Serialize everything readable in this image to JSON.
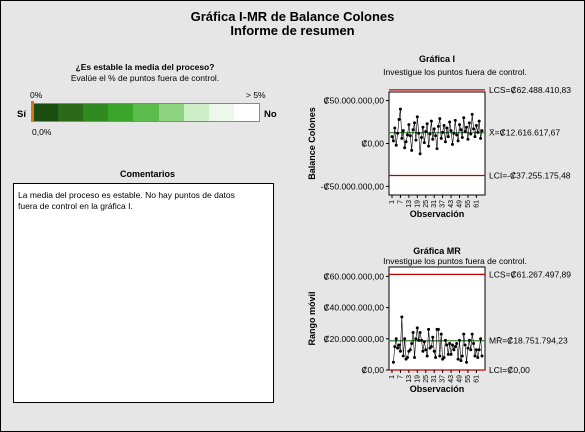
{
  "report": {
    "title": "Gráfica I-MR de Balance Colones",
    "subtitle": "Informe de resumen"
  },
  "gauge": {
    "question": "¿Es estable la media del proceso?",
    "instruction": "Evalúe el % de puntos fuera de control.",
    "min_label": "0%",
    "max_label": "> 5%",
    "yes_label": "Sí",
    "no_label": "No",
    "value_label": "0,0%",
    "value_percent": 0.0,
    "colors": [
      "#1c4d10",
      "#2a6a18",
      "#2f8a1f",
      "#3aa52a",
      "#5cbc4c",
      "#8ed480",
      "#cdeec6",
      "#ecf8e9",
      "#ffffff"
    ]
  },
  "comments": {
    "title": "Comentarios",
    "lines": [
      "La media del proceso es estable. No hay puntos de datos",
      "fuera de control en la gráfica I."
    ]
  },
  "colors": {
    "control_limit": "#c00000",
    "center_line": "#2e7d32",
    "points": "#000000"
  },
  "chart_data": [
    {
      "type": "line",
      "title": "Gráfica I",
      "subtitle": "Investigue los puntos fuera de control.",
      "xlabel": "Observación",
      "ylabel": "Balance Colones",
      "ylim": [
        -60000000,
        60000000
      ],
      "ytick_labels": [
        "₡50.000.000,00",
        "₡0,00",
        "-₡50.000.000,00"
      ],
      "ytick_values": [
        50000000,
        0,
        -50000000
      ],
      "xtick_labels": [
        "1",
        "7",
        "13",
        "19",
        "25",
        "31",
        "37",
        "43",
        "49",
        "55",
        "61"
      ],
      "limits": {
        "ucl": 62488410.83,
        "ucl_label": "LCS=₡62.488.410,83",
        "center": 12616617.67,
        "center_label": "X̄=₡12.616.617,67",
        "lcl": -37255175.48,
        "lcl_label": "LCI=-₡37.255.175,48"
      },
      "x": [
        1,
        2,
        3,
        4,
        5,
        6,
        7,
        8,
        9,
        10,
        11,
        12,
        13,
        14,
        15,
        16,
        17,
        18,
        19,
        20,
        21,
        22,
        23,
        24,
        25,
        26,
        27,
        28,
        29,
        30,
        31,
        32,
        33,
        34,
        35,
        36,
        37,
        38,
        39,
        40,
        41,
        42,
        43,
        44,
        45,
        46,
        47,
        48,
        49,
        50,
        51,
        52,
        53,
        54,
        55,
        56,
        57,
        58,
        59,
        60,
        61,
        62,
        63,
        64,
        65
      ],
      "values": [
        8000000,
        3000000,
        18000000,
        -2000000,
        12000000,
        28000000,
        40000000,
        6000000,
        15000000,
        -5000000,
        2000000,
        10000000,
        22000000,
        9000000,
        -8000000,
        16000000,
        24000000,
        4000000,
        31000000,
        12000000,
        -12000000,
        7000000,
        19000000,
        1000000,
        14000000,
        23000000,
        -3000000,
        11000000,
        26000000,
        5000000,
        17000000,
        9000000,
        -6000000,
        20000000,
        29000000,
        6000000,
        13000000,
        21000000,
        2000000,
        18000000,
        8000000,
        25000000,
        15000000,
        -1000000,
        12000000,
        27000000,
        10000000,
        3000000,
        22000000,
        16000000,
        7000000,
        30000000,
        14000000,
        19000000,
        5000000,
        24000000,
        11000000,
        34000000,
        17000000,
        8000000,
        21000000,
        13000000,
        26000000,
        6000000,
        15000000
      ]
    },
    {
      "type": "line",
      "title": "Gráfica MR",
      "subtitle": "Investigue los puntos fuera de control.",
      "xlabel": "Observación",
      "ylabel": "Rango móvil",
      "ylim": [
        0,
        66000000
      ],
      "ytick_labels": [
        "₡60.000.000,00",
        "₡40.000.000,00",
        "₡20.000.000,00",
        "₡0,00"
      ],
      "ytick_values": [
        60000000,
        40000000,
        20000000,
        0
      ],
      "xtick_labels": [
        "1",
        "7",
        "13",
        "19",
        "25",
        "31",
        "37",
        "43",
        "49",
        "55",
        "61"
      ],
      "limits": {
        "ucl": 61267497.89,
        "ucl_label": "LCS=₡61.267.497,89",
        "center": 18751794.23,
        "center_label": "MR̄=₡18.751.794,23",
        "lcl": 0,
        "lcl_label": "LCI=₡0,00"
      },
      "x": [
        2,
        3,
        4,
        5,
        6,
        7,
        8,
        9,
        10,
        11,
        12,
        13,
        14,
        15,
        16,
        17,
        18,
        19,
        20,
        21,
        22,
        23,
        24,
        25,
        26,
        27,
        28,
        29,
        30,
        31,
        32,
        33,
        34,
        35,
        36,
        37,
        38,
        39,
        40,
        41,
        42,
        43,
        44,
        45,
        46,
        47,
        48,
        49,
        50,
        51,
        52,
        53,
        54,
        55,
        56,
        57,
        58,
        59,
        60,
        61,
        62,
        63,
        64,
        65
      ],
      "values": [
        5000000,
        15000000,
        20000000,
        14000000,
        16000000,
        12000000,
        34000000,
        9000000,
        20000000,
        7000000,
        8000000,
        12000000,
        13000000,
        17000000,
        24000000,
        8000000,
        20000000,
        27000000,
        19000000,
        24000000,
        19000000,
        12000000,
        18000000,
        13000000,
        9000000,
        26000000,
        14000000,
        15000000,
        21000000,
        12000000,
        8000000,
        26000000,
        26000000,
        9000000,
        23000000,
        7000000,
        8000000,
        19000000,
        16000000,
        10000000,
        17000000,
        10000000,
        16000000,
        13000000,
        15000000,
        17000000,
        7000000,
        19000000,
        6000000,
        9000000,
        23000000,
        16000000,
        5000000,
        14000000,
        19000000,
        13000000,
        23000000,
        17000000,
        9000000,
        13000000,
        8000000,
        13000000,
        20000000,
        9000000
      ]
    }
  ]
}
